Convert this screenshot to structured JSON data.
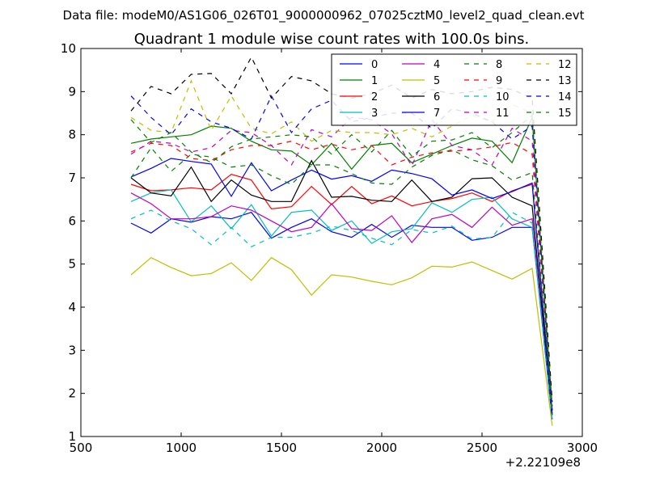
{
  "chart_data": {
    "type": "line",
    "suptitle": "Data file: modeM0/AS1G06_026T01_9000000962_07025cztM0_level2_quad_clean.evt",
    "title": "Quadrant 1 module wise count rates with 100.0s bins.",
    "xlabel": "",
    "ylabel": "",
    "x_offset_label": "+2.22109e8",
    "xlim": [
      500,
      3000
    ],
    "ylim": [
      1,
      10
    ],
    "x_ticks": [
      500,
      1000,
      1500,
      2000,
      2500,
      3000
    ],
    "x_tick_labels": [
      "500",
      "1000",
      "1500",
      "2000",
      "2500",
      "3000"
    ],
    "y_ticks": [
      1,
      2,
      3,
      4,
      5,
      6,
      7,
      8,
      9,
      10
    ],
    "y_tick_labels": [
      "1",
      "2",
      "3",
      "4",
      "5",
      "6",
      "7",
      "8",
      "9",
      "10"
    ],
    "grid": false,
    "legend_location": "top-right",
    "legend_columns": 4,
    "x": [
      750,
      850,
      950,
      1050,
      1150,
      1250,
      1350,
      1450,
      1550,
      1650,
      1750,
      1850,
      1950,
      2050,
      2150,
      2250,
      2350,
      2450,
      2550,
      2650,
      2750,
      2850
    ],
    "series": [
      {
        "name": "0",
        "color": "#0000ff",
        "dash": "solid",
        "values": [
          5.95,
          5.72,
          6.05,
          5.97,
          6.1,
          6.05,
          6.2,
          5.6,
          5.85,
          6.05,
          5.75,
          5.62,
          5.92,
          5.62,
          5.9,
          5.85,
          5.85,
          5.55,
          5.62,
          5.85,
          5.85,
          1.4
        ]
      },
      {
        "name": "1",
        "color": "#008000",
        "dash": "solid",
        "values": [
          7.8,
          7.9,
          7.95,
          8.0,
          8.2,
          8.15,
          7.85,
          7.65,
          7.62,
          7.3,
          7.8,
          7.2,
          7.75,
          7.8,
          7.35,
          7.55,
          7.75,
          7.92,
          7.85,
          7.35,
          8.4,
          1.5
        ]
      },
      {
        "name": "2",
        "color": "#ff0000",
        "dash": "solid",
        "values": [
          6.85,
          6.7,
          6.72,
          6.77,
          6.72,
          7.08,
          6.95,
          6.28,
          6.33,
          6.8,
          6.38,
          6.8,
          6.4,
          6.58,
          6.35,
          6.45,
          6.52,
          6.65,
          6.45,
          6.7,
          6.85,
          1.6
        ]
      },
      {
        "name": "3",
        "color": "#00bfbf",
        "dash": "solid",
        "values": [
          6.45,
          6.65,
          6.72,
          5.98,
          6.35,
          5.82,
          6.38,
          5.65,
          6.2,
          6.25,
          5.78,
          6.0,
          5.48,
          5.75,
          5.82,
          6.42,
          6.2,
          6.5,
          6.55,
          6.05,
          5.85,
          1.5
        ]
      },
      {
        "name": "4",
        "color": "#bf00bf",
        "dash": "solid",
        "values": [
          6.65,
          6.4,
          6.05,
          6.05,
          6.1,
          6.35,
          6.25,
          6.0,
          5.75,
          5.85,
          6.4,
          5.82,
          5.78,
          6.12,
          5.5,
          6.05,
          6.15,
          5.85,
          6.32,
          5.9,
          6.05,
          1.6
        ]
      },
      {
        "name": "5",
        "color": "#bfbf00",
        "dash": "solid",
        "values": [
          4.75,
          5.15,
          4.92,
          4.73,
          4.78,
          5.03,
          4.62,
          5.15,
          4.87,
          4.28,
          4.75,
          4.7,
          4.6,
          4.52,
          4.68,
          4.95,
          4.93,
          5.05,
          4.85,
          4.65,
          4.9,
          1.25
        ]
      },
      {
        "name": "6",
        "color": "#000000",
        "dash": "solid",
        "values": [
          7.0,
          6.65,
          6.58,
          7.25,
          6.45,
          6.95,
          6.6,
          6.45,
          6.45,
          7.4,
          6.55,
          6.57,
          6.48,
          6.45,
          6.95,
          6.45,
          6.55,
          6.98,
          7.0,
          6.55,
          6.35,
          1.5
        ]
      },
      {
        "name": "7",
        "color": "#0000ff",
        "dash": "solid",
        "values": [
          7.02,
          7.22,
          7.45,
          7.38,
          7.32,
          6.57,
          7.35,
          6.7,
          6.95,
          7.18,
          6.97,
          7.05,
          6.92,
          7.18,
          7.1,
          6.98,
          6.6,
          6.72,
          6.52,
          6.68,
          6.88,
          1.5
        ]
      },
      {
        "name": "8",
        "color": "#008000",
        "dash": "dashed",
        "values": [
          7.0,
          7.7,
          7.15,
          7.55,
          7.48,
          7.25,
          7.3,
          7.05,
          6.85,
          7.3,
          7.3,
          7.1,
          6.88,
          6.85,
          7.25,
          7.52,
          7.65,
          7.42,
          7.28,
          6.95,
          7.12,
          1.6
        ]
      },
      {
        "name": "9",
        "color": "#ff0000",
        "dash": "dashed",
        "values": [
          7.6,
          7.8,
          7.75,
          7.45,
          7.4,
          7.65,
          7.75,
          7.75,
          7.85,
          7.65,
          7.78,
          7.65,
          7.75,
          7.3,
          7.48,
          7.58,
          7.62,
          7.65,
          7.72,
          7.82,
          7.55,
          1.7
        ]
      },
      {
        "name": "10",
        "color": "#00bfbf",
        "dash": "dashed",
        "values": [
          6.05,
          6.25,
          6.0,
          5.82,
          5.45,
          5.85,
          5.4,
          5.62,
          5.62,
          5.72,
          5.88,
          5.78,
          5.6,
          5.45,
          5.8,
          5.72,
          5.88,
          5.58,
          5.62,
          6.2,
          5.95,
          1.4
        ]
      },
      {
        "name": "11",
        "color": "#bf00bf",
        "dash": "dashed",
        "values": [
          7.55,
          7.85,
          7.8,
          7.6,
          7.7,
          8.1,
          8.05,
          7.75,
          7.3,
          8.12,
          7.95,
          8.4,
          8.35,
          8.02,
          7.28,
          8.35,
          7.75,
          7.65,
          7.3,
          8.15,
          7.85,
          1.7
        ]
      },
      {
        "name": "12",
        "color": "#bfbf00",
        "dash": "dashed",
        "values": [
          8.4,
          8.1,
          8.05,
          9.25,
          8.1,
          8.9,
          8.15,
          8.02,
          8.3,
          7.85,
          8.1,
          8.05,
          8.05,
          8.0,
          8.15,
          7.95,
          8.2,
          8.45,
          8.3,
          8.7,
          8.5,
          1.8
        ]
      },
      {
        "name": "13",
        "color": "#000000",
        "dash": "dashed",
        "values": [
          8.55,
          9.12,
          8.95,
          9.4,
          9.42,
          8.95,
          9.8,
          8.85,
          9.35,
          9.25,
          8.95,
          8.85,
          8.95,
          9.15,
          8.85,
          9.05,
          8.95,
          9.0,
          9.1,
          9.05,
          8.85,
          1.8
        ]
      },
      {
        "name": "14",
        "color": "#0000ff",
        "dash": "dashed",
        "values": [
          8.9,
          8.4,
          8.0,
          8.6,
          8.3,
          8.15,
          7.9,
          8.9,
          8.05,
          8.6,
          8.8,
          8.3,
          8.4,
          8.5,
          8.5,
          8.15,
          8.6,
          8.5,
          8.3,
          7.9,
          8.2,
          1.6
        ]
      },
      {
        "name": "15",
        "color": "#008000",
        "dash": "dashed",
        "values": [
          8.35,
          7.82,
          8.05,
          7.6,
          7.35,
          7.72,
          7.9,
          7.95,
          8.0,
          7.95,
          7.55,
          8.0,
          7.6,
          8.1,
          7.5,
          7.85,
          7.88,
          8.05,
          7.7,
          8.05,
          8.45,
          1.5
        ]
      }
    ]
  }
}
